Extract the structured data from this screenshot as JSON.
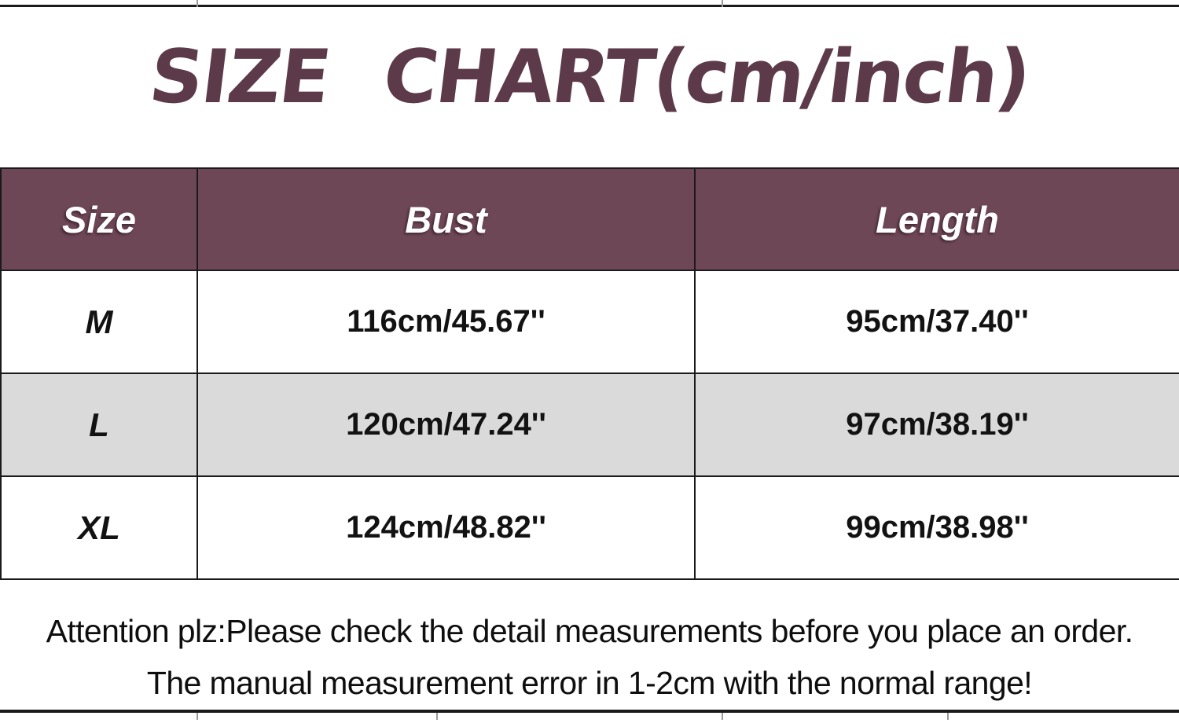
{
  "title": "SIZE CHART(cm/inch)",
  "chart_data": {
    "type": "table",
    "title": "SIZE CHART(cm/inch)",
    "columns": [
      "Size",
      "Bust",
      "Length"
    ],
    "rows": [
      [
        "M",
        "116cm/45.67''",
        "95cm/37.40''"
      ],
      [
        "L",
        "120cm/47.24''",
        "97cm/38.19''"
      ],
      [
        "XL",
        "124cm/48.82''",
        "99cm/38.98''"
      ]
    ],
    "units": "cm/inch"
  },
  "note": {
    "line1": "Attention plz:Please check the detail measurements before you place an order.",
    "line2": "The manual measurement error in 1-2cm with the normal range!"
  },
  "colors": {
    "header_bg": "#6e4757",
    "title_text": "#5d3a49",
    "alt_row_bg": "#dadada",
    "border": "#1a1a1a"
  }
}
